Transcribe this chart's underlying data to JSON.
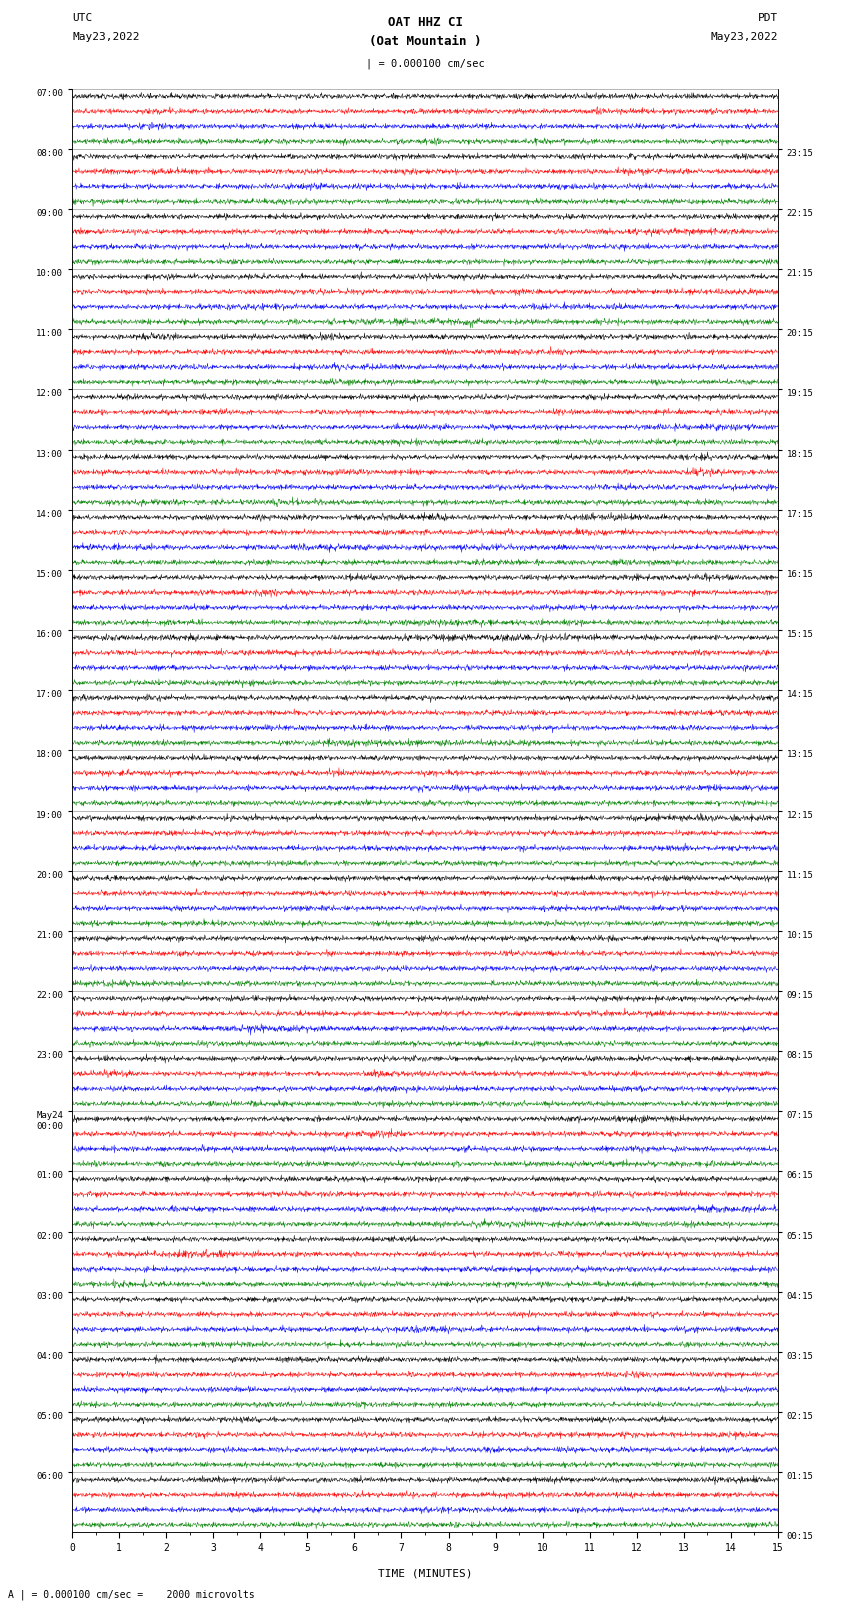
{
  "title_line1": "OAT HHZ CI",
  "title_line2": "(Oat Mountain )",
  "title_scale": "| = 0.000100 cm/sec",
  "left_label_top": "UTC",
  "left_label_date": "May23,2022",
  "right_label_top": "PDT",
  "right_label_date": "May23,2022",
  "bottom_label": "TIME (MINUTES)",
  "bottom_note": "= 0.000100 cm/sec =    2000 microvolts",
  "colors": [
    "black",
    "red",
    "blue",
    "green"
  ],
  "background_color": "white",
  "fig_width": 8.5,
  "fig_height": 16.13,
  "dpi": 100,
  "left_time_labels": [
    "07:00",
    "08:00",
    "09:00",
    "10:00",
    "11:00",
    "12:00",
    "13:00",
    "14:00",
    "15:00",
    "16:00",
    "17:00",
    "18:00",
    "19:00",
    "20:00",
    "21:00",
    "22:00",
    "23:00",
    "May24\n00:00",
    "01:00",
    "02:00",
    "03:00",
    "04:00",
    "05:00",
    "06:00"
  ],
  "right_time_labels": [
    "00:15",
    "01:15",
    "02:15",
    "03:15",
    "04:15",
    "05:15",
    "06:15",
    "07:15",
    "08:15",
    "09:15",
    "10:15",
    "11:15",
    "12:15",
    "13:15",
    "14:15",
    "15:15",
    "16:15",
    "17:15",
    "18:15",
    "19:15",
    "20:15",
    "21:15",
    "22:15",
    "23:15"
  ],
  "num_hours": 24,
  "traces_per_hour": 4,
  "samples_per_row": 1800,
  "trace_amplitude": 0.42,
  "noise_base": 0.08
}
